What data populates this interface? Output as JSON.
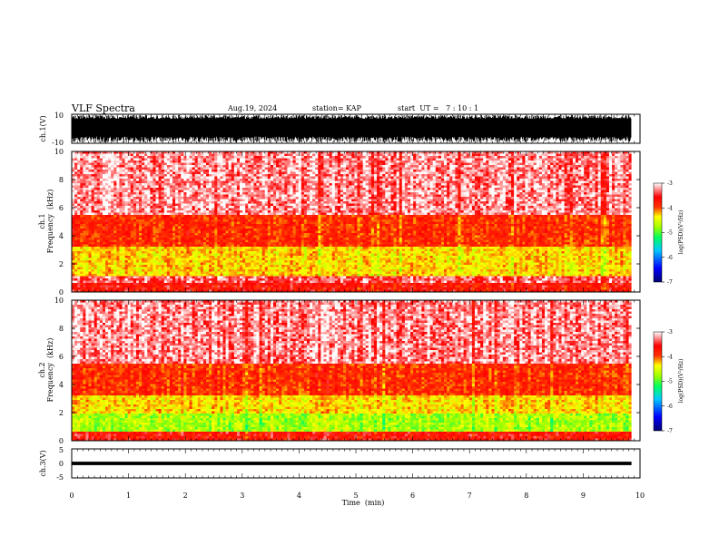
{
  "header": {
    "title": "VLF Spectra",
    "date": "Aug.19, 2024",
    "station": "station= KAP",
    "start_ut": "start  UT =   7 : 10 : 1"
  },
  "chart_data": [
    {
      "id": "ch1-waveform",
      "type": "line",
      "ylabel": "ch.1(V)",
      "ylim": [
        -10,
        10
      ],
      "yticks": [
        "10",
        "-10"
      ],
      "xlim": [
        0,
        10
      ],
      "description_values": "dense waveform spanning nearly full range"
    },
    {
      "id": "ch1-spectrogram",
      "type": "heatmap",
      "ylabel": "ch.1\nFrequency  (kHz)",
      "ylabel_line1": "ch.1",
      "ylabel_line2": "Frequency  (kHz)",
      "ylim": [
        0,
        10
      ],
      "yticks": [
        "0",
        "2",
        "4",
        "6",
        "8",
        "10"
      ],
      "xlim": [
        0,
        9.85
      ],
      "bands": [
        {
          "f_low": 0.0,
          "f_high": 0.7,
          "level": -3.6
        },
        {
          "f_low": 0.7,
          "f_high": 1.2,
          "level": -3.3
        },
        {
          "f_low": 1.2,
          "f_high": 3.3,
          "level": -4.3
        },
        {
          "f_low": 3.3,
          "f_high": 5.5,
          "level": -3.8
        },
        {
          "f_low": 5.5,
          "f_high": 10.0,
          "level": -3.2
        }
      ],
      "colorbar": {
        "label": "log(PSD)(V²/Hz)",
        "range": [
          -7,
          -3
        ],
        "ticks": [
          "-3",
          "-4",
          "-5",
          "-6",
          "-7"
        ]
      }
    },
    {
      "id": "ch2-spectrogram",
      "type": "heatmap",
      "ylabel_line1": "ch.2",
      "ylabel_line2": "Frequency  (kHz)",
      "ylim": [
        0,
        10
      ],
      "yticks": [
        "0",
        "2",
        "4",
        "6",
        "8",
        "10"
      ],
      "xlim": [
        0,
        9.85
      ],
      "bands": [
        {
          "f_low": 0.0,
          "f_high": 0.7,
          "level": -3.6
        },
        {
          "f_low": 0.7,
          "f_high": 1.9,
          "level": -4.7
        },
        {
          "f_low": 1.9,
          "f_high": 3.2,
          "level": -4.3
        },
        {
          "f_low": 3.2,
          "f_high": 5.5,
          "level": -3.8
        },
        {
          "f_low": 5.5,
          "f_high": 10.0,
          "level": -3.2
        }
      ],
      "colorbar": {
        "label": "log(PSD)(V²/Hz)",
        "range": [
          -7,
          -3
        ],
        "ticks": [
          "-3",
          "-4",
          "-5",
          "-6",
          "-7"
        ]
      }
    },
    {
      "id": "ch3-waveform",
      "type": "line",
      "ylabel": "ch.3(V)",
      "ylim": [
        -5,
        5
      ],
      "yticks": [
        "5",
        "0",
        "-5"
      ],
      "xlim": [
        0,
        10
      ],
      "trace_center": 0,
      "trace_amplitude": 0.6
    }
  ],
  "time_axis": {
    "xlabel": "Time  (min)",
    "ticks": [
      "0",
      "1",
      "2",
      "3",
      "4",
      "5",
      "6",
      "7",
      "8",
      "9",
      "10"
    ],
    "xlim": [
      0,
      10
    ]
  },
  "colors": {
    "waveform": "#000000",
    "colormap": [
      "#000080",
      "#0000ff",
      "#00c8ff",
      "#00ff00",
      "#ffff00",
      "#ff0000",
      "#ffffff"
    ]
  }
}
